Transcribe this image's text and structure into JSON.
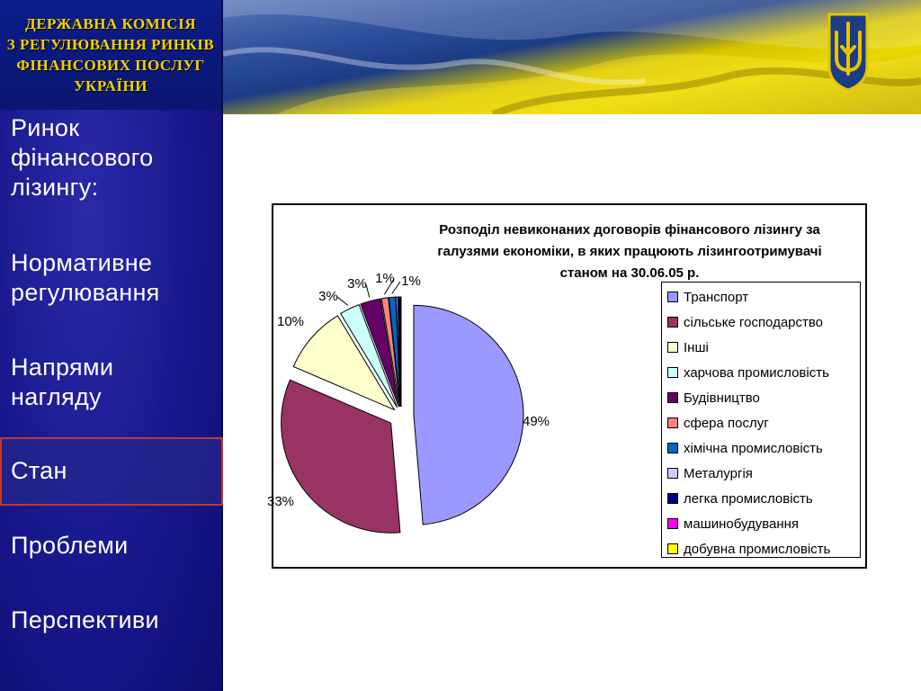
{
  "header": {
    "org_lines": [
      "ДЕРЖАВНА КОМІСІЯ",
      "З РЕГУЛЮВАННЯ РИНКІВ",
      "ФІНАНСОВИХ ПОСЛУГ",
      "УКРАЇНИ"
    ]
  },
  "sidebar": {
    "items": [
      {
        "label_lines": [
          "Ринок",
          "фінансового",
          "лізингу:"
        ]
      },
      {
        "label_lines": [
          "Нормативне",
          "регулювання"
        ]
      },
      {
        "label_lines": [
          "Напрями",
          "нагляду"
        ]
      },
      {
        "label_lines": [
          "Стан"
        ],
        "current": true
      },
      {
        "label_lines": [
          "Проблеми"
        ]
      },
      {
        "label_lines": [
          "Перспективи"
        ]
      }
    ]
  },
  "colors": {
    "sidebar_bg": "#16168a",
    "org_text": "#f2d200",
    "current_border": "#c0392b"
  },
  "icons": {
    "emblem": "trident-coat-of-arms-icon"
  },
  "chart_data": {
    "type": "pie",
    "title_lines": [
      "Розподіл невиконаних договорів фінансового лізингу за",
      "галузями економіки, в яких працюють лізингоотримувачі",
      "станом на 30.06.05 р."
    ],
    "legend_position": "right",
    "slices": [
      {
        "name": "Транспорт",
        "value": 49,
        "label": "49%",
        "color": "#9999ff"
      },
      {
        "name": "сільське господарство",
        "value": 33,
        "label": "33%",
        "color": "#993366"
      },
      {
        "name": "Інші",
        "value": 10,
        "label": "10%",
        "color": "#ffffcc"
      },
      {
        "name": "харчова промисловість",
        "value": 3,
        "label": "3%",
        "color": "#ccffff"
      },
      {
        "name": "Будівництво",
        "value": 3,
        "label": "3%",
        "color": "#660066"
      },
      {
        "name": "сфера послуг",
        "value": 1,
        "label": "1%",
        "color": "#ff8080"
      },
      {
        "name": "хімічна промисловість",
        "value": 1,
        "label": "1%",
        "color": "#0066cc"
      },
      {
        "name": "Металургія",
        "value": 0.25,
        "label": "",
        "color": "#ccccff"
      },
      {
        "name": "легка промисловість",
        "value": 0.25,
        "label": "",
        "color": "#000080"
      },
      {
        "name": "машинобудування",
        "value": 0.1,
        "label": "",
        "color": "#ff00ff"
      },
      {
        "name": "добувна промисловість",
        "value": 0.1,
        "label": "",
        "color": "#ffff00"
      }
    ]
  }
}
